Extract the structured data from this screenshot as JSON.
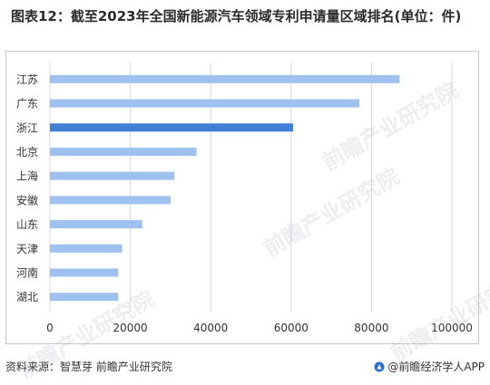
{
  "title": "图表12：截至2023年全国新能源汽车领域专利申请量区域排名(单位：件)",
  "footer": {
    "source": "资料来源：智慧芽 前瞻产业研究院",
    "brand": "@前瞻经济学人APP"
  },
  "watermark": "前瞻产业研究院",
  "colors": {
    "bar": "#9ec1f0",
    "bar_highlight": "#3f7fd6",
    "grid": "#d9d9d9"
  },
  "chart_data": {
    "type": "bar",
    "orientation": "horizontal",
    "categories": [
      "江苏",
      "广东",
      "浙江",
      "北京",
      "上海",
      "安徽",
      "山东",
      "天津",
      "河南",
      "湖北"
    ],
    "values": [
      87000,
      77000,
      60500,
      36500,
      31000,
      30000,
      23000,
      18000,
      17000,
      17000
    ],
    "highlight": "浙江",
    "xlim": [
      0,
      100000
    ],
    "xticks": [
      0,
      20000,
      40000,
      60000,
      80000,
      100000
    ],
    "xtick_labels": [
      "0",
      "20000",
      "40000",
      "60000",
      "80000",
      "100000"
    ],
    "grid": "vertical"
  }
}
